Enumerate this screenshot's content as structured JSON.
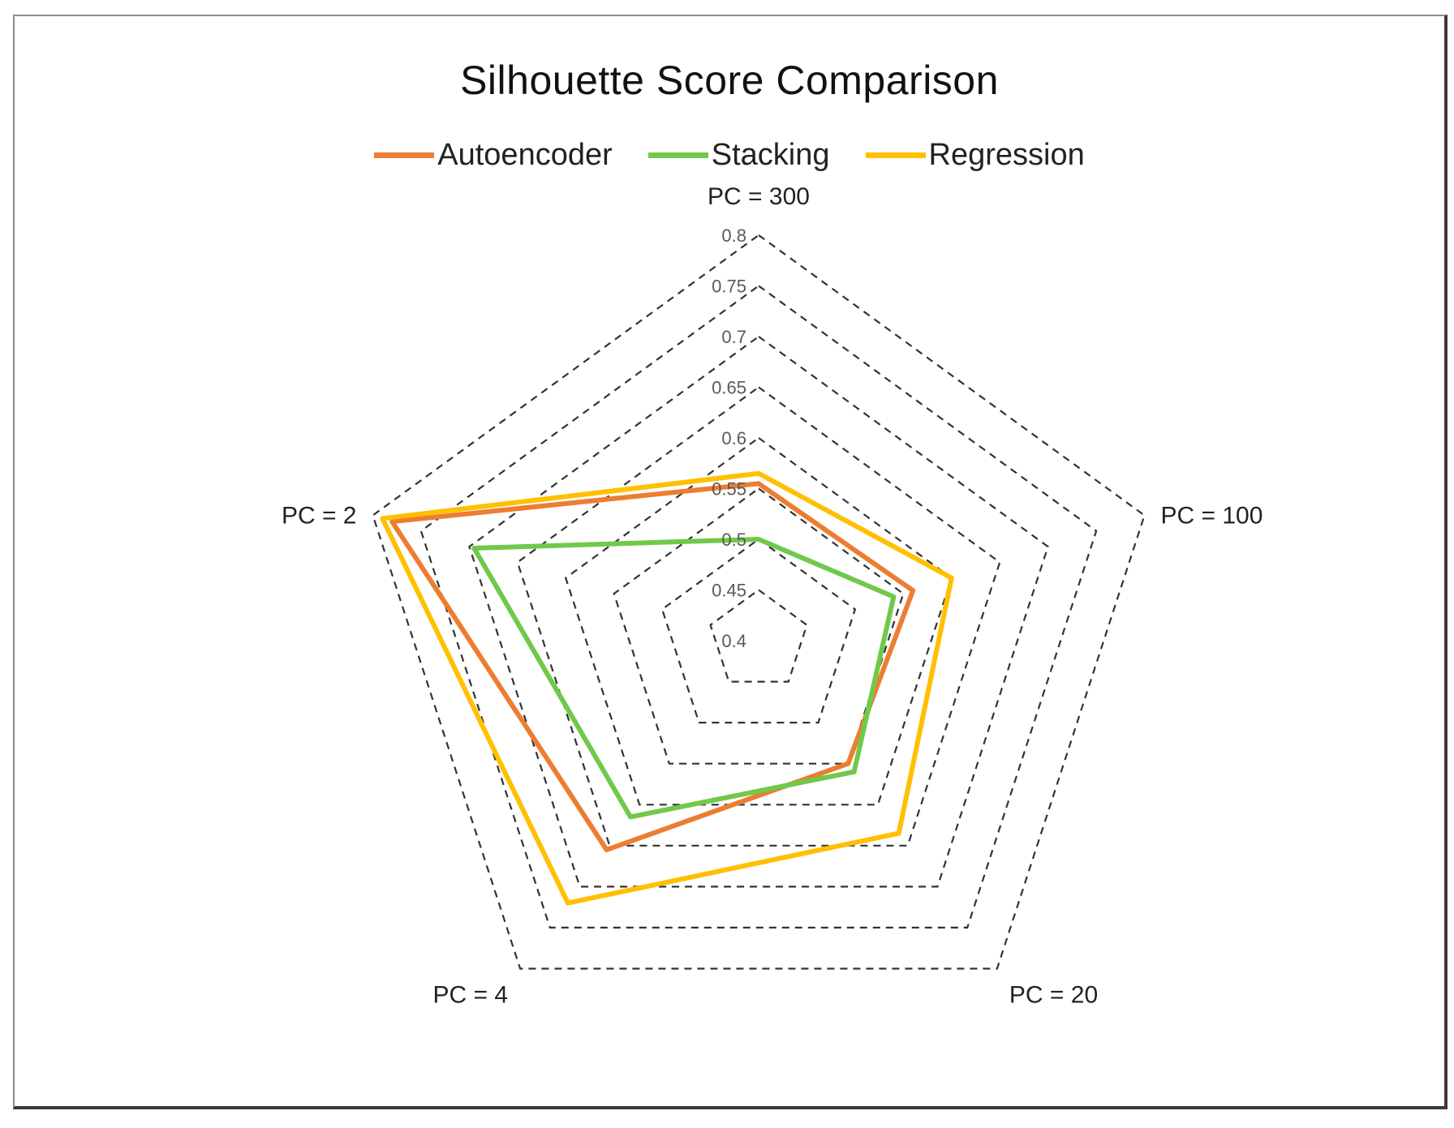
{
  "chart_data": {
    "type": "radar",
    "title": "Silhouette Score Comparison",
    "axes": [
      "PC = 300",
      "PC = 100",
      "PC = 20",
      "PC = 4",
      "PC = 2"
    ],
    "r_ticks": [
      "0.4",
      "0.45",
      "0.5",
      "0.55",
      "0.6",
      "0.65",
      "0.7",
      "0.75",
      "0.8"
    ],
    "rlim": [
      0.4,
      0.8
    ],
    "grid": "dashed",
    "legend_position": "top",
    "series": [
      {
        "name": "Autoencoder",
        "color": "#ED7D31",
        "values": [
          0.555,
          0.56,
          0.55,
          0.655,
          0.78
        ]
      },
      {
        "name": "Stacking",
        "color": "#70C94A",
        "values": [
          0.5,
          0.54,
          0.56,
          0.615,
          0.695
        ]
      },
      {
        "name": "Regression",
        "color": "#FFC000",
        "values": [
          0.565,
          0.6,
          0.635,
          0.72,
          0.79
        ]
      }
    ]
  }
}
